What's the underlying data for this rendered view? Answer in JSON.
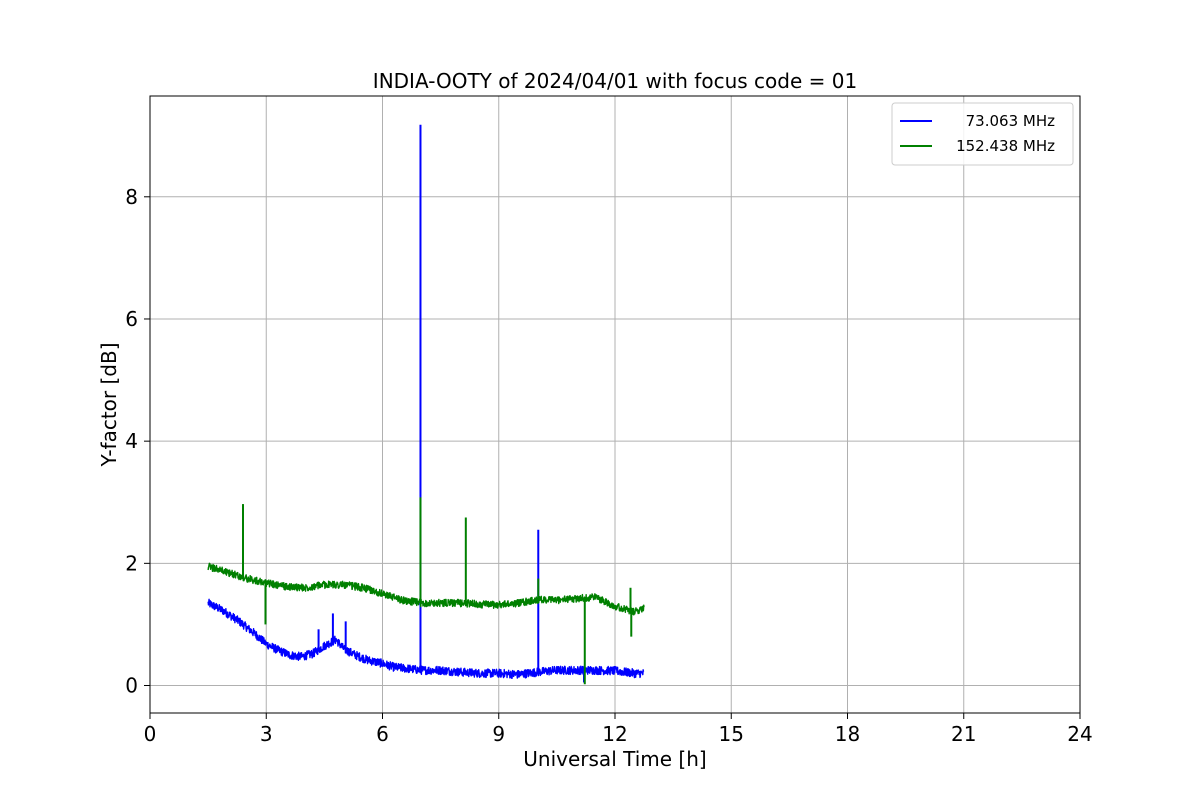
{
  "chart_data": {
    "type": "line",
    "title": "INDIA-OOTY of 2024/04/01 with focus code = 01",
    "xlabel": "Universal Time [h]",
    "ylabel": "Y-factor [dB]",
    "xlim": [
      0,
      24
    ],
    "ylim": [
      -0.45,
      9.65
    ],
    "xticks": [
      0,
      3,
      6,
      9,
      12,
      15,
      18,
      21,
      24
    ],
    "yticks": [
      0,
      2,
      4,
      6,
      8
    ],
    "grid": true,
    "legend_position": "top-right",
    "series": [
      {
        "name": "73.063 MHz",
        "color": "#0000ff",
        "noise": 0.07,
        "x": [
          1.5,
          1.9,
          2.3,
          2.7,
          3.0,
          3.3,
          3.6,
          3.9,
          4.2,
          4.5,
          4.8,
          5.0,
          5.3,
          5.6,
          6.0,
          6.3,
          6.6,
          7.0,
          7.5,
          8.0,
          8.5,
          9.0,
          9.5,
          10.0,
          10.5,
          11.0,
          11.5,
          12.0,
          12.5,
          12.75
        ],
        "y": [
          1.35,
          1.22,
          1.05,
          0.85,
          0.68,
          0.58,
          0.5,
          0.47,
          0.52,
          0.65,
          0.75,
          0.6,
          0.5,
          0.42,
          0.36,
          0.3,
          0.28,
          0.25,
          0.25,
          0.22,
          0.2,
          0.2,
          0.18,
          0.22,
          0.25,
          0.25,
          0.25,
          0.24,
          0.2,
          0.2
        ],
        "spikes": [
          {
            "x": 6.98,
            "y": 9.18
          },
          {
            "x": 10.02,
            "y": 2.55
          },
          {
            "x": 4.72,
            "y": 1.18
          },
          {
            "x": 5.05,
            "y": 1.05
          },
          {
            "x": 4.35,
            "y": 0.92
          }
        ],
        "dips": [
          {
            "x": 11.2,
            "y": 0.05
          }
        ]
      },
      {
        "name": "152.438 MHz",
        "color": "#008000",
        "noise": 0.06,
        "x": [
          1.5,
          2.0,
          2.5,
          3.0,
          3.5,
          4.0,
          4.5,
          5.0,
          5.5,
          6.0,
          6.5,
          7.0,
          7.5,
          8.0,
          8.5,
          9.0,
          9.5,
          10.0,
          10.5,
          11.0,
          11.5,
          12.0,
          12.5,
          12.75
        ],
        "y": [
          1.95,
          1.85,
          1.75,
          1.68,
          1.62,
          1.6,
          1.65,
          1.65,
          1.6,
          1.5,
          1.4,
          1.35,
          1.35,
          1.35,
          1.33,
          1.32,
          1.35,
          1.4,
          1.4,
          1.42,
          1.45,
          1.3,
          1.2,
          1.28
        ],
        "spikes": [
          {
            "x": 2.4,
            "y": 2.97
          },
          {
            "x": 6.98,
            "y": 3.08
          },
          {
            "x": 8.15,
            "y": 2.75
          },
          {
            "x": 10.02,
            "y": 1.75
          },
          {
            "x": 12.4,
            "y": 1.6
          }
        ],
        "dips": [
          {
            "x": 2.98,
            "y": 1.0
          },
          {
            "x": 11.22,
            "y": 0.02
          },
          {
            "x": 12.42,
            "y": 0.8
          }
        ]
      }
    ]
  }
}
